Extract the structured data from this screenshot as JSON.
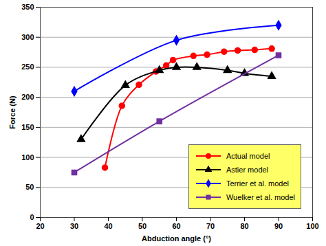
{
  "chart_data": {
    "type": "line",
    "x_label": "Abduction angle (°)",
    "y_label": "Force (N)",
    "xlim": [
      20,
      100
    ],
    "xticks": [
      20,
      30,
      40,
      50,
      60,
      70,
      80,
      90,
      100
    ],
    "ylim": [
      0,
      350
    ],
    "yticks": [
      0,
      50,
      100,
      150,
      200,
      250,
      300,
      350
    ],
    "grid": true,
    "legend": "lower right",
    "series": [
      {
        "name": "Actual model",
        "color": "#ff0000",
        "marker": "circle",
        "line_style": "solid",
        "x": [
          39,
          44,
          49,
          54,
          57,
          59,
          65,
          69,
          74,
          78,
          83,
          88
        ],
        "values": [
          83,
          186,
          221,
          243,
          253,
          262,
          269,
          271,
          276,
          278,
          279,
          281
        ]
      },
      {
        "name": "Astier model",
        "color": "#000000",
        "marker": "triangle",
        "line_style": "solid",
        "x": [
          32,
          45,
          55,
          60,
          66,
          75,
          80,
          88
        ],
        "values": [
          130,
          220,
          245,
          250,
          250,
          245,
          240,
          235
        ]
      },
      {
        "name": "Terrier et al. model",
        "color": "#0000ff",
        "marker": "diamond",
        "line_style": "solid",
        "x": [
          30,
          60,
          90
        ],
        "values": [
          210,
          295,
          320
        ]
      },
      {
        "name": "Wuelker et al. model",
        "color": "#7030a0",
        "marker": "square",
        "line_style": "solid",
        "x": [
          30,
          55,
          90
        ],
        "values": [
          75,
          160,
          270
        ]
      }
    ]
  }
}
